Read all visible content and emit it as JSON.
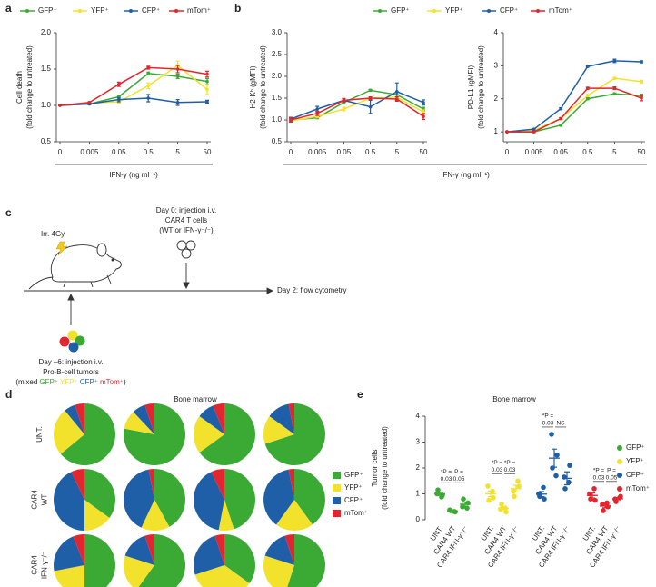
{
  "panels": [
    "a",
    "b",
    "c",
    "d",
    "e"
  ],
  "diagram": {
    "irradiation": "Irr. 4Gy",
    "day0": [
      "Day 0: injection i.v.",
      "CAR4 T cells",
      "(WT or IFN-γ⁻/⁻)"
    ],
    "day2": "Day 2: flow cytometry",
    "day_minus6": [
      "Day –6: injection i.v.",
      "Pro-B-cell tumors"
    ],
    "mix_prefix": "(mixed",
    "mix_labels": [
      "GFP⁺",
      "YFP⁺",
      "CFP⁺",
      "mTom⁺"
    ],
    "mix_colors": [
      "#3aaa35",
      "#f2e22c",
      "#1f5fa8",
      "#e3262d"
    ],
    "mix_suffix": ")"
  },
  "chart_data": [
    {
      "type": "line",
      "ylabel": [
        "Cell death",
        "(fold change to untreated)"
      ],
      "xlabel": "IFN-γ (ng ml⁻¹)",
      "categories": [
        "0",
        "0.005",
        "0.05",
        "0.5",
        "5",
        "50"
      ],
      "ylim": [
        0.5,
        2.0
      ],
      "yticks": [
        0.5,
        {
          "value": 1,
          "label": "1.0"
        },
        1.5,
        {
          "value": 2,
          "label": "2.0"
        }
      ],
      "series": [
        {
          "name": "GFP⁺",
          "color": "#3aaa35",
          "values": [
            1.0,
            1.02,
            1.12,
            1.44,
            1.4,
            1.33
          ],
          "errors": [
            0,
            0.01,
            0.02,
            0.02,
            0.03,
            0.04
          ]
        },
        {
          "name": "YFP⁺",
          "color": "#f2e22c",
          "values": [
            1.0,
            1.03,
            1.05,
            1.27,
            1.55,
            1.22
          ],
          "errors": [
            0,
            0.01,
            0.02,
            0.04,
            0.06,
            0.07
          ]
        },
        {
          "name": "CFP⁺",
          "color": "#1f5fa8",
          "values": [
            1.0,
            1.02,
            1.08,
            1.1,
            1.04,
            1.05
          ],
          "errors": [
            0,
            0.01,
            0.03,
            0.05,
            0.04,
            0.02
          ]
        },
        {
          "name": "mTom⁺",
          "color": "#e3262d",
          "values": [
            1.0,
            1.04,
            1.29,
            1.52,
            1.5,
            1.43
          ],
          "errors": [
            0,
            0.01,
            0.03,
            0.02,
            0.05,
            0.04
          ]
        }
      ]
    },
    {
      "type": "line",
      "ylabel": [
        "H2-Kᵇ (gMFI)",
        "(fold change to untreated)"
      ],
      "xlabel": "IFN-γ (ng ml⁻¹)",
      "categories": [
        "0",
        "0.005",
        "0.05",
        "0.5",
        "5",
        "50"
      ],
      "ylim": [
        0.5,
        3.0
      ],
      "yticks": [
        0.5,
        {
          "value": 1,
          "label": "1.0"
        },
        1.5,
        {
          "value": 2,
          "label": "2.0"
        },
        2.5,
        {
          "value": 3,
          "label": "3.0"
        }
      ],
      "series": [
        {
          "name": "GFP⁺",
          "color": "#3aaa35",
          "values": [
            1.0,
            1.05,
            1.4,
            1.68,
            1.58,
            1.25
          ],
          "errors": [
            0.02,
            0.02,
            0.03,
            0.02,
            0.05,
            0.04
          ]
        },
        {
          "name": "YFP⁺",
          "color": "#f2e22c",
          "values": [
            0.98,
            1.08,
            1.25,
            1.5,
            1.52,
            1.18
          ],
          "errors": [
            0.03,
            0.03,
            0.04,
            0.03,
            0.04,
            0.05
          ]
        },
        {
          "name": "CFP⁺",
          "color": "#1f5fa8",
          "values": [
            1.02,
            1.25,
            1.45,
            1.3,
            1.65,
            1.4
          ],
          "errors": [
            0.04,
            0.06,
            0.04,
            0.15,
            0.2,
            0.06
          ]
        },
        {
          "name": "mTom⁺",
          "color": "#e3262d",
          "values": [
            1.0,
            1.15,
            1.45,
            1.5,
            1.48,
            1.08
          ],
          "errors": [
            0.05,
            0.05,
            0.04,
            0.03,
            0.05,
            0.07
          ]
        }
      ]
    },
    {
      "type": "line",
      "ylabel": [
        "PD-L1 (gMFI)",
        "(fold change to untreated)"
      ],
      "categories": [
        "0",
        "0.005",
        "0.05",
        "0.5",
        "5",
        "50"
      ],
      "ylim": [
        0.7,
        4
      ],
      "yticks": [
        1,
        2,
        3,
        4
      ],
      "series": [
        {
          "color": "#3aaa35",
          "values": [
            1.0,
            1.0,
            1.2,
            2.0,
            2.15,
            2.1
          ],
          "errors": [
            0.01,
            0.02,
            0.02,
            0.03,
            0.03,
            0.04
          ]
        },
        {
          "color": "#f2e22c",
          "values": [
            1.0,
            1.05,
            1.4,
            2.1,
            2.62,
            2.52
          ],
          "errors": [
            0.01,
            0.02,
            0.03,
            0.03,
            0.03,
            0.04
          ]
        },
        {
          "color": "#1f5fa8",
          "values": [
            1.0,
            1.08,
            1.7,
            2.98,
            3.15,
            3.12
          ],
          "errors": [
            0.01,
            0.02,
            0.03,
            0.02,
            0.05,
            0.03
          ]
        },
        {
          "color": "#e3262d",
          "values": [
            1.0,
            1.0,
            1.4,
            2.32,
            2.32,
            2.02
          ],
          "errors": [
            0.01,
            0.02,
            0.03,
            0.03,
            0.04,
            0.08
          ]
        }
      ]
    },
    {
      "type": "pie",
      "title": "Bone marrow",
      "row_labels": [
        [
          "UNT."
        ],
        [
          "CAR4",
          "WT"
        ],
        [
          "CAR4",
          "IFN-γ⁻/⁻"
        ]
      ],
      "series_names": [
        "GFP⁺",
        "YFP⁺",
        "CFP⁺",
        "mTom⁺"
      ],
      "colors": [
        "#3aaa35",
        "#f2e22c",
        "#1f5fa8",
        "#e3262d"
      ],
      "pies": [
        [
          [
            64,
            25,
            6,
            5
          ],
          [
            78,
            10,
            7,
            5
          ],
          [
            65,
            20,
            9,
            6
          ],
          [
            70,
            15,
            12,
            3
          ]
        ],
        [
          [
            35,
            15,
            43,
            7
          ],
          [
            42,
            15,
            40,
            3
          ],
          [
            45,
            8,
            40,
            7
          ],
          [
            40,
            20,
            37,
            3
          ]
        ],
        [
          [
            50,
            22,
            22,
            6
          ],
          [
            60,
            20,
            15,
            5
          ],
          [
            35,
            35,
            25,
            5
          ],
          [
            55,
            25,
            15,
            5
          ]
        ]
      ]
    },
    {
      "type": "dot",
      "title": "Bone marrow",
      "ylabel": [
        "Tumor cells",
        "(fold change to untreated)"
      ],
      "categories": [
        "UNT.",
        "CAR4 WT",
        "CAR4 IFN-γ⁻/⁻"
      ],
      "ylim": [
        0,
        4
      ],
      "yticks": [
        0,
        1,
        2,
        3,
        4
      ],
      "series": [
        {
          "name": "GFP⁺",
          "color": "#3aaa35",
          "points": [
            [
              1.0,
              0.95,
              1.15,
              0.88
            ],
            [
              0.38,
              0.3,
              0.35,
              0.32
            ],
            [
              0.5,
              0.65,
              0.8,
              0.45
            ]
          ],
          "means": [
            1.0,
            0.34,
            0.6
          ],
          "sems": [
            0.06,
            0.02,
            0.08
          ],
          "comparisons": [
            [
              "*P =",
              "0.03"
            ],
            [
              "P =",
              "0.05"
            ]
          ]
        },
        {
          "name": "YFP⁺",
          "color": "#f2e22c",
          "points": [
            [
              1.3,
              0.85,
              0.75,
              1.1
            ],
            [
              0.4,
              0.3,
              0.6,
              0.45
            ],
            [
              1.1,
              1.3,
              0.9,
              1.5
            ]
          ],
          "means": [
            1.0,
            0.44,
            1.2
          ],
          "sems": [
            0.11,
            0.06,
            0.13
          ],
          "comparisons": [
            [
              "*P =",
              "0.03"
            ],
            [
              "*P =",
              "0.03"
            ]
          ]
        },
        {
          "name": "CFP⁺",
          "color": "#1f5fa8",
          "points": [
            [
              1.0,
              0.8,
              0.9,
              1.25
            ],
            [
              3.3,
              2.5,
              2.0,
              1.7
            ],
            [
              1.65,
              2.1,
              1.2,
              1.45
            ]
          ],
          "means": [
            0.99,
            2.38,
            1.6
          ],
          "sems": [
            0.1,
            0.35,
            0.25
          ],
          "comparisons": [
            [
              "*P =",
              "0.03"
            ],
            [
              "NS"
            ]
          ]
        },
        {
          "name": "mTom⁺",
          "color": "#e3262d",
          "points": [
            [
              1.0,
              0.75,
              0.8,
              1.2
            ],
            [
              0.6,
              0.5,
              0.35,
              0.65
            ],
            [
              0.8,
              0.9,
              0.7,
              0.85
            ]
          ],
          "means": [
            0.94,
            0.53,
            0.81
          ],
          "sems": [
            0.1,
            0.07,
            0.04
          ],
          "comparisons": [
            [
              "*P =",
              "0.03"
            ],
            [
              "P =",
              "0.05"
            ]
          ]
        }
      ]
    }
  ]
}
